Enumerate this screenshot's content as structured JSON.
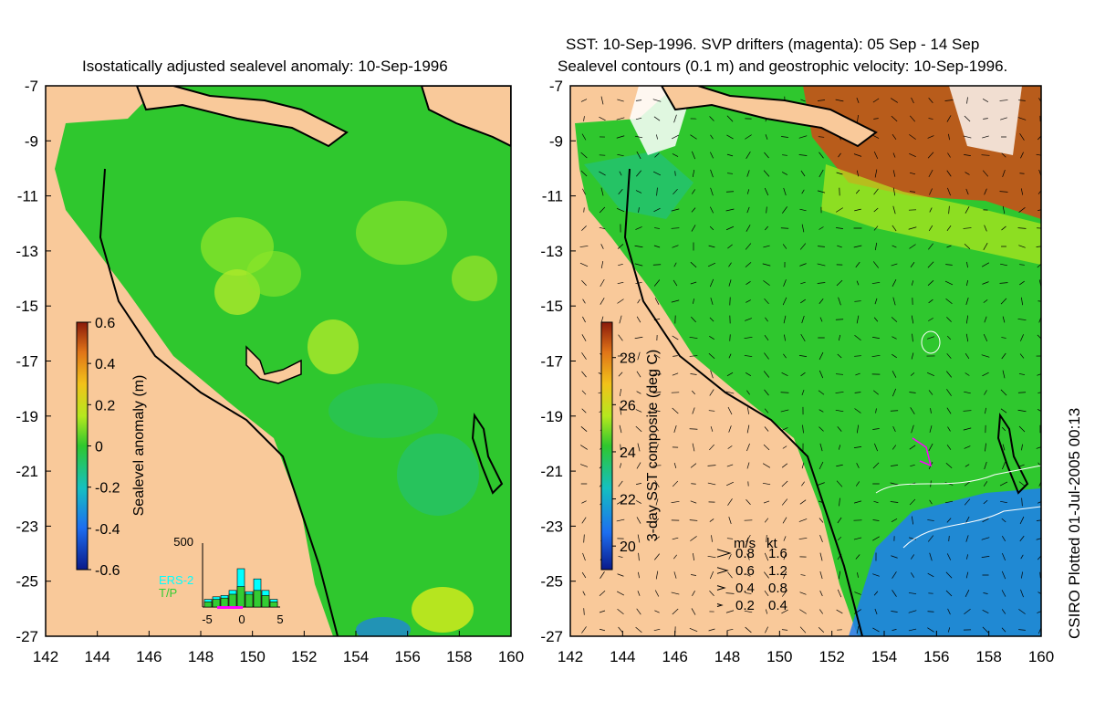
{
  "left_title": "Isostatically adjusted sealevel anomaly: 10-Sep-1996",
  "right_title_line1": "SST: 10-Sep-1996. SVP drifters (magenta): 05 Sep - 14 Sep",
  "right_title_line2": "Sealevel contours (0.1 m) and geostrophic velocity: 10-Sep-1996.",
  "credit": "CSIRO Plotted 01-Jul-2005 00:13",
  "colors": {
    "land": "#f9c99a",
    "sea_green": "#2fc72e",
    "sea_light": "#7ee62a",
    "sea_cyan": "#20c08a",
    "warm": "#c8501a",
    "cool": "#1d7ef0",
    "ers2": "#00ffff",
    "tp": "#33cc33",
    "drifter": "#ff00ff"
  },
  "chart_data": [
    {
      "type": "heatmap",
      "title": "Isostatically adjusted sealevel anomaly: 10-Sep-1996",
      "x_ticks": [
        "142",
        "144",
        "146",
        "148",
        "150",
        "152",
        "154",
        "156",
        "158",
        "160"
      ],
      "y_ticks": [
        "-7",
        "-9",
        "-11",
        "-13",
        "-15",
        "-17",
        "-19",
        "-21",
        "-23",
        "-25",
        "-27"
      ],
      "xlim": [
        142,
        160
      ],
      "ylim": [
        -27,
        -7
      ],
      "colorbar": {
        "label": "Sealevel anomaly (m)",
        "ticks": [
          "0.6",
          "0.4",
          "0.2",
          "0",
          "-0.2",
          "-0.4",
          "-0.6"
        ],
        "range": [
          -0.6,
          0.6
        ]
      },
      "histogram": {
        "ymax_label": "500",
        "x_ticks": [
          "-5",
          "0",
          "5"
        ],
        "legend": [
          "ERS-2",
          "T/P"
        ],
        "ers2_values": [
          60,
          80,
          90,
          130,
          300,
          120,
          220,
          130,
          60
        ],
        "tp_values": [
          40,
          60,
          70,
          100,
          160,
          100,
          130,
          90,
          40
        ]
      }
    },
    {
      "type": "heatmap",
      "title": "SST: 10-Sep-1996. SVP drifters (magenta): 05 Sep - 14 Sep / Sealevel contours (0.1 m) and geostrophic velocity: 10-Sep-1996.",
      "x_ticks": [
        "142",
        "144",
        "146",
        "148",
        "150",
        "152",
        "154",
        "156",
        "158",
        "160"
      ],
      "y_ticks": [
        "-7",
        "-9",
        "-11",
        "-13",
        "-15",
        "-17",
        "-19",
        "-21",
        "-23",
        "-25",
        "-27"
      ],
      "xlim": [
        142,
        160
      ],
      "ylim": [
        -27,
        -7
      ],
      "colorbar": {
        "label": "3-day SST composite (deg C)",
        "ticks": [
          "28",
          "26",
          "24",
          "22",
          "20"
        ],
        "range": [
          19,
          29.5
        ]
      },
      "velocity_legend": {
        "header_ms": "m/s",
        "header_kt": "kt",
        "rows": [
          {
            "ms": "0.8",
            "kt": "1.6"
          },
          {
            "ms": "0.6",
            "kt": "1.2"
          },
          {
            "ms": "0.4",
            "kt": "0.8"
          },
          {
            "ms": "0.2",
            "kt": "0.4"
          }
        ]
      }
    }
  ]
}
